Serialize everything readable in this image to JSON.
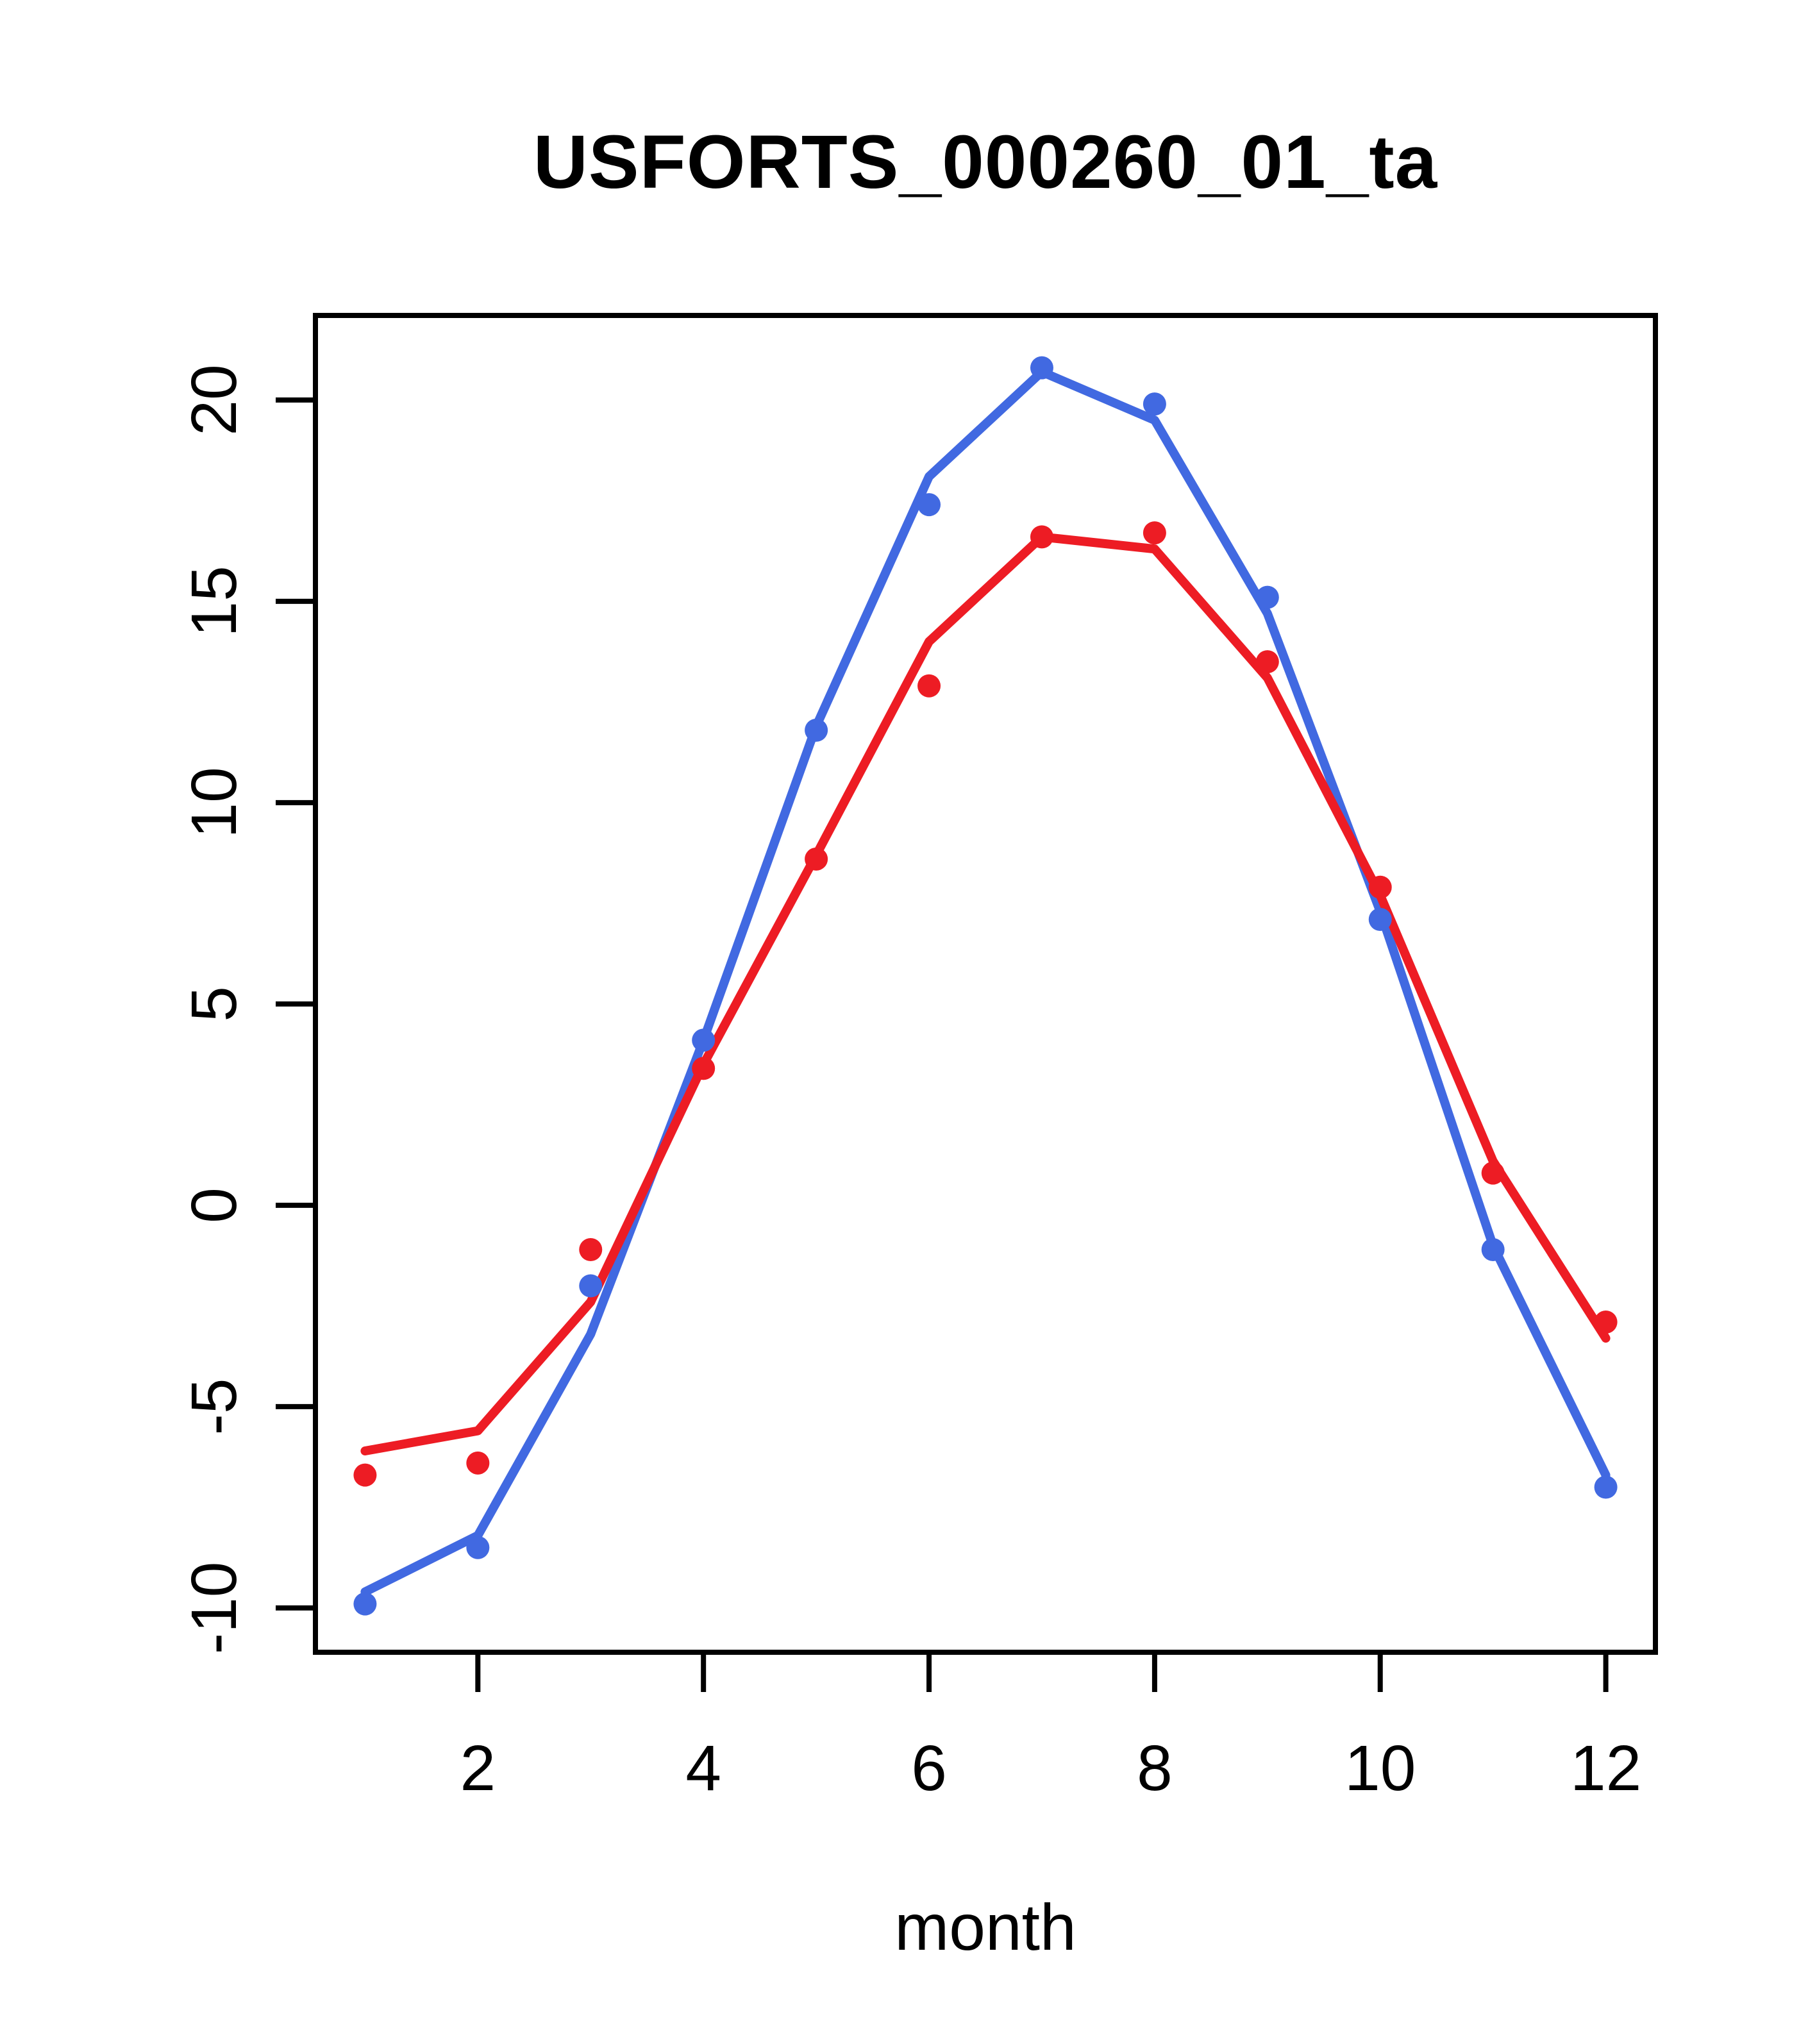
{
  "figure": {
    "background": "#ffffff",
    "axis_color": "#000000"
  },
  "chart_data": {
    "type": "line",
    "title": "USFORTS_000260_01_ta",
    "xlabel": "month",
    "ylabel": "",
    "x": [
      1,
      2,
      3,
      4,
      5,
      6,
      7,
      8,
      9,
      10,
      11,
      12
    ],
    "x_ticks": [
      "2",
      "4",
      "6",
      "8",
      "10",
      "12"
    ],
    "x_tick_values": [
      2,
      4,
      6,
      8,
      10,
      12
    ],
    "y_ticks": [
      "-10",
      "-5",
      "0",
      "5",
      "10",
      "15",
      "20"
    ],
    "y_tick_values": [
      -10,
      -5,
      0,
      5,
      10,
      15,
      20
    ],
    "xlim": [
      0.56,
      12.44
    ],
    "ylim": [
      -11.1,
      22.1
    ],
    "grid": false,
    "legend": null,
    "series": [
      {
        "name": "blue-line",
        "type": "line",
        "color": "#4169E1",
        "values": [
          -9.6,
          -8.2,
          -3.2,
          4.1,
          11.9,
          18.1,
          20.7,
          19.5,
          14.7,
          7.3,
          -1.0,
          -6.7
        ]
      },
      {
        "name": "red-line",
        "type": "line",
        "color": "#ED1C24",
        "values": [
          -6.1,
          -5.6,
          -2.4,
          3.5,
          8.7,
          14.0,
          16.6,
          16.3,
          13.1,
          7.7,
          1.1,
          -3.3
        ]
      },
      {
        "name": "blue-points",
        "type": "points",
        "color": "#4169E1",
        "values": [
          -9.9,
          -8.5,
          -2.0,
          4.1,
          11.8,
          17.4,
          20.8,
          19.9,
          15.1,
          7.1,
          -1.1,
          -7.0
        ]
      },
      {
        "name": "red-points",
        "type": "points",
        "color": "#ED1C24",
        "values": [
          -6.7,
          -6.4,
          -1.1,
          3.4,
          8.6,
          12.9,
          16.6,
          16.7,
          13.5,
          7.9,
          0.8,
          -2.9
        ]
      }
    ]
  }
}
